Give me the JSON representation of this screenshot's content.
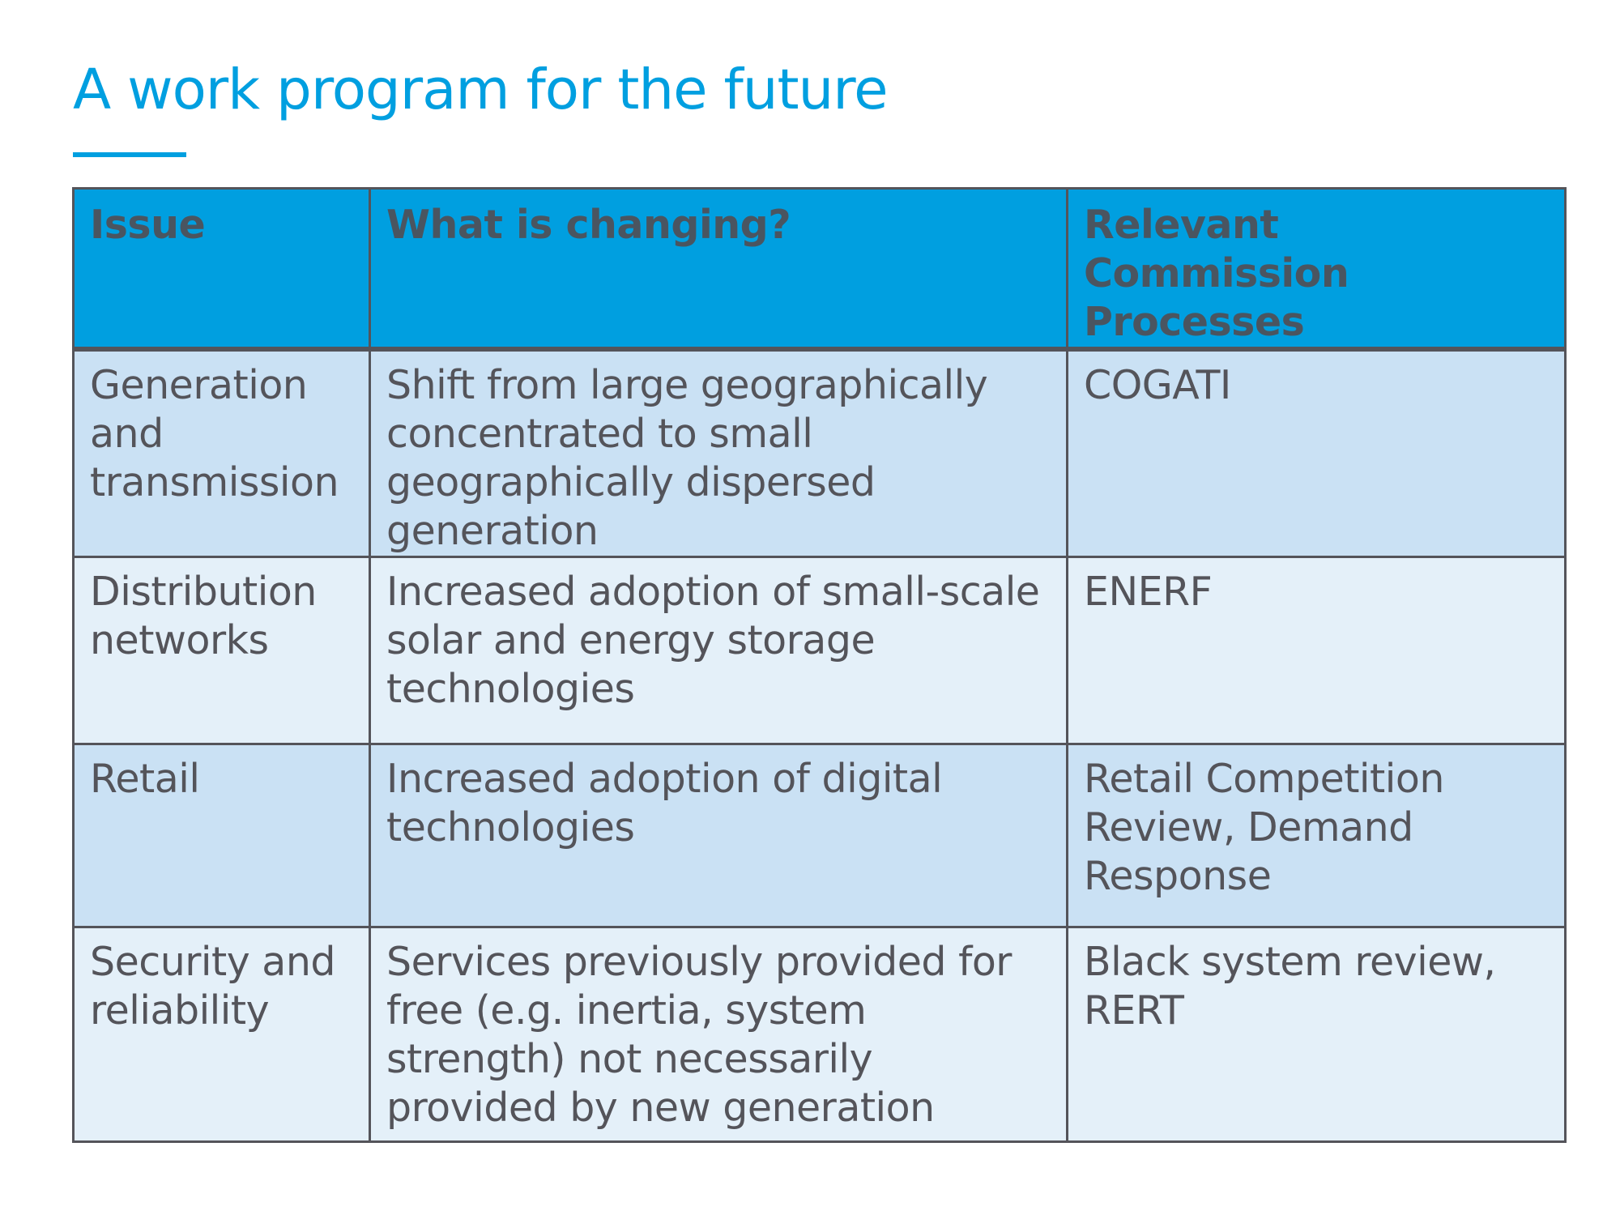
{
  "title": "A work program for the future",
  "table": {
    "headers": [
      "Issue",
      "What is changing?",
      "Relevant Commission Processes"
    ],
    "rows": [
      {
        "issue": "Generation and transmission",
        "change": "Shift from large geographically concentrated to small geographically dispersed generation",
        "processes": "COGATI"
      },
      {
        "issue": "Distribution networks",
        "change": "Increased adoption of small-scale solar and energy storage technologies",
        "processes": "ENERF"
      },
      {
        "issue": "Retail",
        "change": "Increased adoption of digital technologies",
        "processes": "Retail Competition Review, Demand Response"
      },
      {
        "issue": "Security and reliability",
        "change": "Services previously provided for free (e.g. inertia, system strength) not necessarily provided by new generation",
        "processes": "Black system review, RERT"
      }
    ]
  },
  "colors": {
    "accent": "#009fe0",
    "header_fill": "#009fe0",
    "row_fill_dark": "#cae1f4",
    "row_fill_light": "#e4f0f9",
    "text": "#54545a"
  }
}
